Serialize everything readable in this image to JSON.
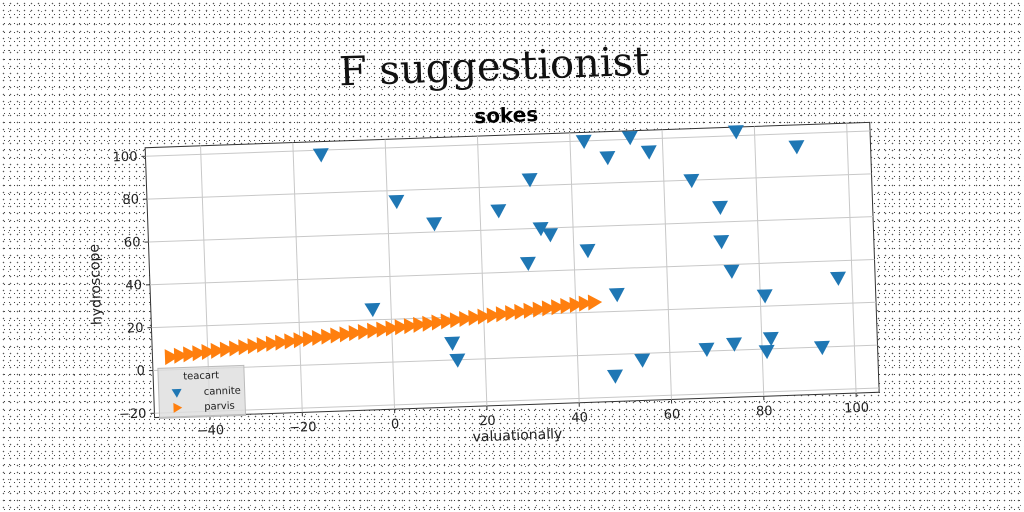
{
  "header": {
    "title": "F suggestionist"
  },
  "chart_data": {
    "type": "scatter",
    "title": "sokes",
    "xlabel": "valuationally",
    "ylabel": "hydroscope",
    "xlim": [
      -52,
      105
    ],
    "ylim": [
      -22,
      104
    ],
    "xticks": [
      -40,
      -20,
      0,
      20,
      40,
      60,
      80,
      100
    ],
    "yticks": [
      -20,
      0,
      20,
      40,
      60,
      80,
      100
    ],
    "xtick_labels": [
      "−40",
      "−20",
      "0",
      "20",
      "40",
      "60",
      "80",
      "100"
    ],
    "ytick_labels": [
      "−20",
      "0",
      "20",
      "40",
      "60",
      "80",
      "100"
    ],
    "grid": true,
    "legend": {
      "title": "teacart",
      "position": "lower-left"
    },
    "series": [
      {
        "name": "cannite",
        "marker": "triangle-down",
        "color": "#1f77b4",
        "points": [
          {
            "x": -14,
            "y": 98
          },
          {
            "x": 2,
            "y": 75
          },
          {
            "x": 10,
            "y": 64
          },
          {
            "x": 24,
            "y": 69
          },
          {
            "x": 31,
            "y": 83
          },
          {
            "x": 33,
            "y": 60
          },
          {
            "x": 35,
            "y": 57
          },
          {
            "x": 30,
            "y": 44
          },
          {
            "x": 43,
            "y": 100
          },
          {
            "x": 48,
            "y": 92
          },
          {
            "x": 53,
            "y": 101
          },
          {
            "x": 57,
            "y": 94
          },
          {
            "x": 76,
            "y": 102
          },
          {
            "x": 89,
            "y": 94
          },
          {
            "x": 66,
            "y": 80
          },
          {
            "x": 72,
            "y": 67
          },
          {
            "x": 72,
            "y": 51
          },
          {
            "x": 74,
            "y": 37
          },
          {
            "x": 43,
            "y": 49
          },
          {
            "x": 49,
            "y": 28
          },
          {
            "x": 81,
            "y": 25
          },
          {
            "x": 97,
            "y": 32
          },
          {
            "x": -4,
            "y": 25
          },
          {
            "x": 13,
            "y": 8
          },
          {
            "x": 14,
            "y": 0
          },
          {
            "x": 48,
            "y": -10
          },
          {
            "x": 54,
            "y": -3
          },
          {
            "x": 68,
            "y": 1
          },
          {
            "x": 74,
            "y": 3
          },
          {
            "x": 82,
            "y": 5
          },
          {
            "x": 81,
            "y": -1
          },
          {
            "x": 93,
            "y": 0
          }
        ]
      },
      {
        "name": "parvis",
        "marker": "triangle-right",
        "color": "#ff7f0e",
        "points": [
          {
            "x": -48,
            "y": 6
          },
          {
            "x": -46,
            "y": 6.5
          },
          {
            "x": -44,
            "y": 7
          },
          {
            "x": -42,
            "y": 7.4
          },
          {
            "x": -40,
            "y": 7.8
          },
          {
            "x": -38,
            "y": 8.2
          },
          {
            "x": -36,
            "y": 8.6
          },
          {
            "x": -34,
            "y": 9
          },
          {
            "x": -32,
            "y": 9.4
          },
          {
            "x": -30,
            "y": 9.8
          },
          {
            "x": -28,
            "y": 10.2
          },
          {
            "x": -26,
            "y": 10.6
          },
          {
            "x": -24,
            "y": 11
          },
          {
            "x": -22,
            "y": 11.4
          },
          {
            "x": -20,
            "y": 11.8
          },
          {
            "x": -18,
            "y": 12.2
          },
          {
            "x": -16,
            "y": 12.6
          },
          {
            "x": -14,
            "y": 13
          },
          {
            "x": -12,
            "y": 13.4
          },
          {
            "x": -10,
            "y": 13.8
          },
          {
            "x": -8,
            "y": 14.2
          },
          {
            "x": -6,
            "y": 14.6
          },
          {
            "x": -4,
            "y": 15
          },
          {
            "x": -2,
            "y": 15.4
          },
          {
            "x": 0,
            "y": 15.8
          },
          {
            "x": 2,
            "y": 16.2
          },
          {
            "x": 4,
            "y": 16.6
          },
          {
            "x": 6,
            "y": 17
          },
          {
            "x": 8,
            "y": 17.4
          },
          {
            "x": 10,
            "y": 17.8
          },
          {
            "x": 12,
            "y": 18.2
          },
          {
            "x": 14,
            "y": 18.6
          },
          {
            "x": 16,
            "y": 19
          },
          {
            "x": 18,
            "y": 19.4
          },
          {
            "x": 20,
            "y": 19.8
          },
          {
            "x": 22,
            "y": 20.2
          },
          {
            "x": 24,
            "y": 20.6
          },
          {
            "x": 26,
            "y": 21
          },
          {
            "x": 28,
            "y": 21.4
          },
          {
            "x": 30,
            "y": 21.8
          },
          {
            "x": 32,
            "y": 22.2
          },
          {
            "x": 34,
            "y": 22.6
          },
          {
            "x": 36,
            "y": 23
          },
          {
            "x": 38,
            "y": 23.4
          },
          {
            "x": 40,
            "y": 23.8
          },
          {
            "x": 42,
            "y": 24.2
          },
          {
            "x": 44,
            "y": 24.6
          }
        ]
      }
    ]
  }
}
